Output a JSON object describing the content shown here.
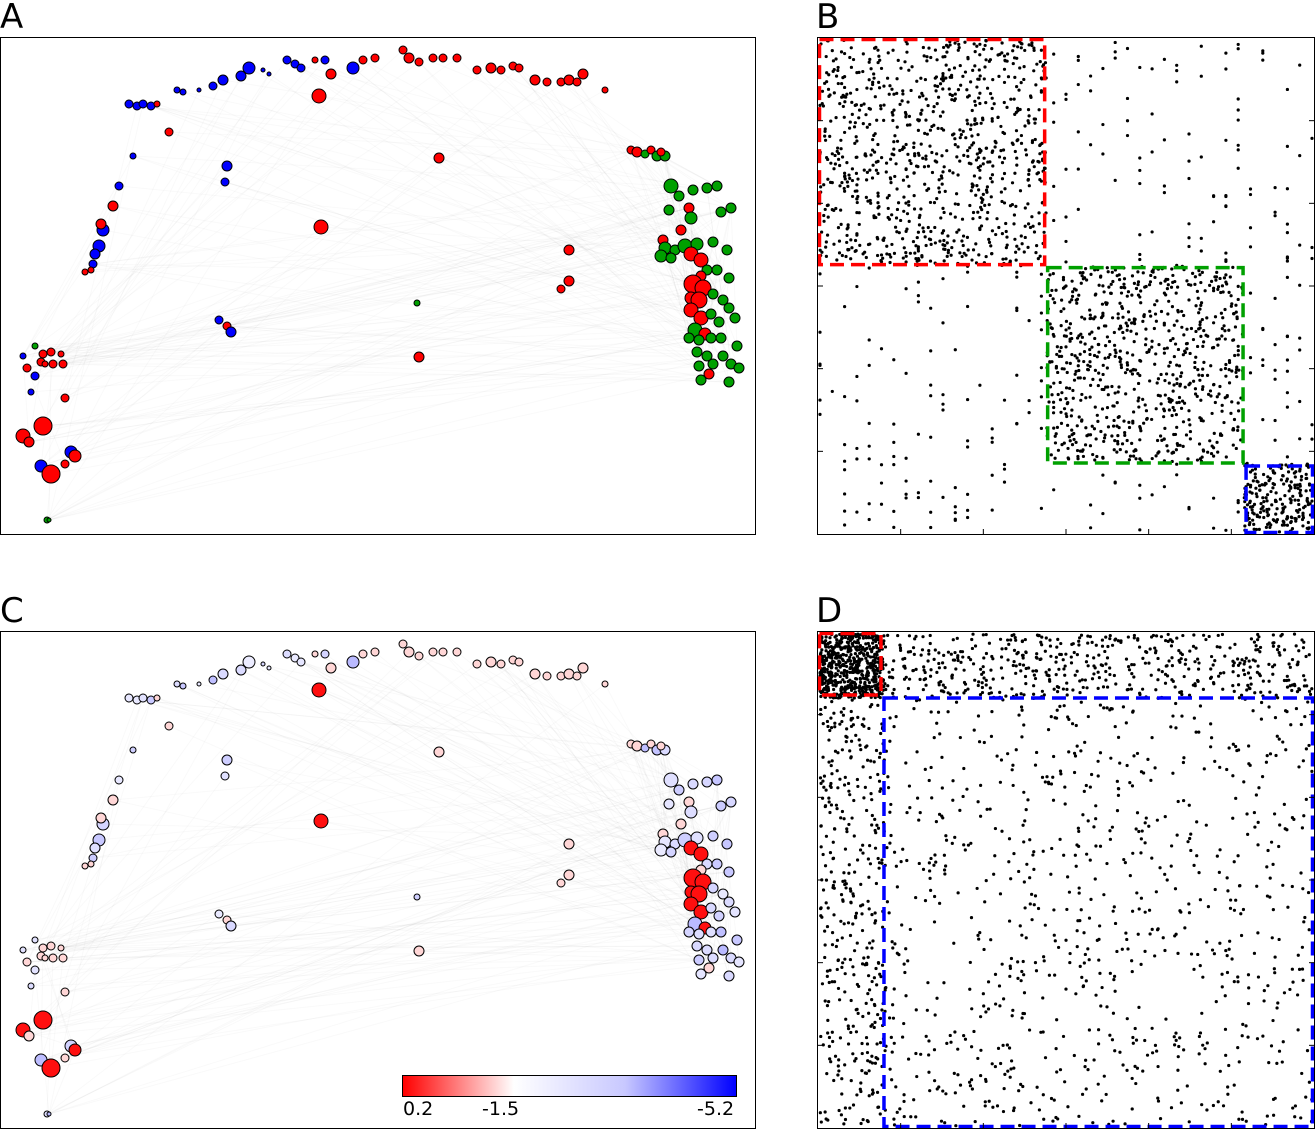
{
  "panels": {
    "a": {
      "label": "A"
    },
    "b": {
      "label": "B"
    },
    "c": {
      "label": "C"
    },
    "d": {
      "label": "D"
    }
  },
  "colors": {
    "group1": "#ff0000",
    "group2": "#00a000",
    "group3": "#0000ff",
    "matrix_dots": "#000000"
  },
  "colorbar": {
    "min_label": "0.2",
    "mid_label": "-1.5",
    "max_label": "-5.2",
    "stops": [
      "#ff0000",
      "#ffffff",
      "#c8c8ff",
      "#0000ff"
    ]
  },
  "matrix_blocks": {
    "b": [
      {
        "color": "#ff0000",
        "start": 0.0,
        "end": 0.46
      },
      {
        "color": "#00a000",
        "start": 0.46,
        "end": 0.86
      },
      {
        "color": "#0000ff",
        "start": 0.86,
        "end": 1.0
      }
    ],
    "d": [
      {
        "color": "#ff0000",
        "start": 0.0,
        "end": 0.13
      },
      {
        "color": "#0000ff",
        "start": 0.13,
        "end": 1.0
      }
    ]
  }
}
